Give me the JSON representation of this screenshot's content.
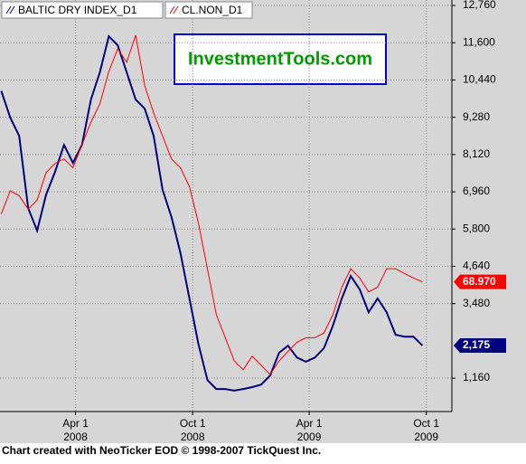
{
  "chart_data": {
    "type": "line",
    "watermark": "InvestmentTools.com",
    "footer": "Chart created with NeoTicker EOD © 1998-2007 TickQuest Inc.",
    "x": [
      "2007-12-07",
      "2007-12-21",
      "2008-01-04",
      "2008-01-18",
      "2008-02-01",
      "2008-02-15",
      "2008-02-29",
      "2008-03-14",
      "2008-03-28",
      "2008-04-11",
      "2008-04-25",
      "2008-05-09",
      "2008-05-23",
      "2008-06-06",
      "2008-06-20",
      "2008-07-04",
      "2008-07-18",
      "2008-08-01",
      "2008-08-15",
      "2008-08-29",
      "2008-09-12",
      "2008-09-26",
      "2008-10-10",
      "2008-10-24",
      "2008-11-07",
      "2008-11-21",
      "2008-12-05",
      "2008-12-19",
      "2009-01-02",
      "2009-01-16",
      "2009-01-30",
      "2009-02-13",
      "2009-02-27",
      "2009-03-13",
      "2009-03-27",
      "2009-04-10",
      "2009-04-24",
      "2009-05-08",
      "2009-05-22",
      "2009-06-05",
      "2009-06-19",
      "2009-07-03",
      "2009-07-17",
      "2009-07-31",
      "2009-08-14",
      "2009-08-28",
      "2009-09-11",
      "2009-09-25"
    ],
    "series": [
      {
        "name": "BALTIC DRY INDEX_D1",
        "color": "#000080",
        "axis": "y",
        "values": [
          10100,
          9270,
          8700,
          6450,
          5750,
          6870,
          7580,
          8420,
          7860,
          8420,
          9830,
          10680,
          11800,
          11520,
          10680,
          9830,
          9550,
          8700,
          7020,
          6170,
          5050,
          3640,
          2230,
          1100,
          820,
          820,
          770,
          820,
          880,
          960,
          1240,
          1950,
          2170,
          1800,
          1670,
          1800,
          2090,
          2790,
          3640,
          4340,
          3920,
          3210,
          3640,
          3210,
          2510,
          2450,
          2450,
          2175
        ],
        "end_label": "2,175"
      },
      {
        "name": "CL.NON_D1",
        "color": "#ff0000",
        "axis": "y2",
        "values": [
          90.4,
          97.7,
          96.2,
          91.9,
          94.8,
          103.5,
          106.4,
          107.8,
          105,
          112.2,
          119.4,
          125.2,
          135.4,
          142.6,
          138.3,
          146.9,
          131,
          122.3,
          115,
          107.8,
          105,
          99.1,
          87.6,
          73.1,
          58.6,
          51.3,
          44,
          41.2,
          45.5,
          42.6,
          39.7,
          44,
          47,
          49.9,
          51.3,
          51.3,
          52.8,
          58.6,
          67.3,
          73.1,
          70.2,
          65.8,
          67.3,
          73.1,
          73.1,
          71.6,
          70.2,
          68.97
        ],
        "end_label": "68.970"
      }
    ],
    "xlim": [
      "2007-12-05",
      "2009-11-10"
    ],
    "xticks": [
      {
        "value": "2008-04-01",
        "label": "Apr 1",
        "year": "2008"
      },
      {
        "value": "2008-10-01",
        "label": "Oct 1",
        "year": "2008"
      },
      {
        "value": "2009-04-01",
        "label": "Apr 1",
        "year": "2009"
      },
      {
        "value": "2009-10-01",
        "label": "Oct 1",
        "year": "2009"
      }
    ],
    "ylim": [
      120,
      12930
    ],
    "yticks": [
      {
        "value": 1160,
        "label": "1,160"
      },
      {
        "value": 3480,
        "label": "3,480"
      },
      {
        "value": 4640,
        "label": "4,640"
      },
      {
        "value": 5800,
        "label": "5,800"
      },
      {
        "value": 6960,
        "label": "6,960"
      },
      {
        "value": 8120,
        "label": "8,120"
      },
      {
        "value": 9280,
        "label": "9,280"
      },
      {
        "value": 10440,
        "label": "10,440"
      },
      {
        "value": 11600,
        "label": "11,600"
      },
      {
        "value": 12760,
        "label": "12,760"
      }
    ],
    "y2lim": [
      28,
      158
    ],
    "grid": true
  }
}
